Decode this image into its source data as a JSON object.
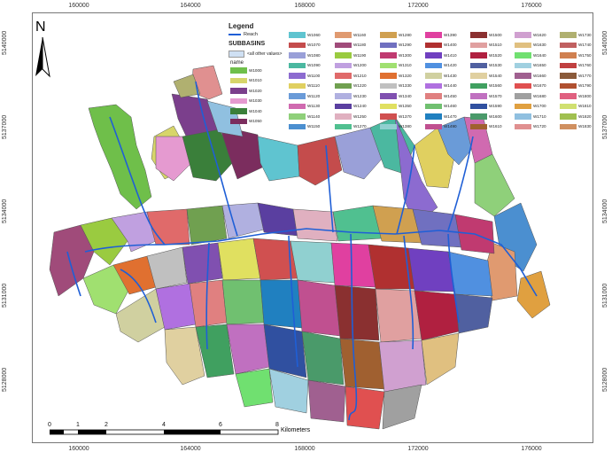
{
  "coords": {
    "x_ticks": [
      "160000",
      "164000",
      "168000",
      "172000",
      "176000"
    ],
    "x_subtitle": "",
    "y_ticks": [
      "5140000",
      "5137000",
      "5134000",
      "5131000",
      "5128000"
    ]
  },
  "legend": {
    "title": "Legend",
    "reach_label": "Reach",
    "subbasins_title": "SUBBASINS",
    "all_other_label": "<all other values>",
    "name_label": "name",
    "entries": [
      {
        "label": "W1000",
        "color": "#6fbf4a"
      },
      {
        "label": "W1010",
        "color": "#d7d56a"
      },
      {
        "label": "W1020",
        "color": "#7b3f8c"
      },
      {
        "label": "W1030",
        "color": "#e59ad0"
      },
      {
        "label": "W1040",
        "color": "#3a7f3a"
      },
      {
        "label": "W1050",
        "color": "#7b2d5e"
      },
      {
        "label": "W1060",
        "color": "#5fc4d0"
      },
      {
        "label": "W1070",
        "color": "#c44c4c"
      },
      {
        "label": "W1080",
        "color": "#9aa0d8"
      },
      {
        "label": "W1090",
        "color": "#4bb8a0"
      },
      {
        "label": "W1100",
        "color": "#8c6bd0"
      },
      {
        "label": "W1110",
        "color": "#e0d060"
      },
      {
        "label": "W1120",
        "color": "#6a9bd8"
      },
      {
        "label": "W1130",
        "color": "#d06ab0"
      },
      {
        "label": "W1140",
        "color": "#8fd07a"
      },
      {
        "label": "W1150",
        "color": "#4b8fd0"
      },
      {
        "label": "W1160",
        "color": "#e09a70"
      },
      {
        "label": "W1180",
        "color": "#a04b7a"
      },
      {
        "label": "W1190",
        "color": "#9acb40"
      },
      {
        "label": "W1200",
        "color": "#c0a0e0"
      },
      {
        "label": "W1210",
        "color": "#e06a6a"
      },
      {
        "label": "W1220",
        "color": "#70a050"
      },
      {
        "label": "W1230",
        "color": "#b0b0e0"
      },
      {
        "label": "W1240",
        "color": "#5a3fa0"
      },
      {
        "label": "W1250",
        "color": "#e0b0c0"
      },
      {
        "label": "W1270",
        "color": "#50c090"
      },
      {
        "label": "W1280",
        "color": "#d0a050"
      },
      {
        "label": "W1290",
        "color": "#7070c0"
      },
      {
        "label": "W1300",
        "color": "#c03a70"
      },
      {
        "label": "W1310",
        "color": "#a0e070"
      },
      {
        "label": "W1320",
        "color": "#e07030"
      },
      {
        "label": "W1330",
        "color": "#c0c0c0"
      },
      {
        "label": "W1340",
        "color": "#8050b0"
      },
      {
        "label": "W1350",
        "color": "#e0e060"
      },
      {
        "label": "W1370",
        "color": "#d05050"
      },
      {
        "label": "W1380",
        "color": "#90d0d0"
      },
      {
        "label": "W1390",
        "color": "#e040a0"
      },
      {
        "label": "W1400",
        "color": "#b03030"
      },
      {
        "label": "W1410",
        "color": "#7040c0"
      },
      {
        "label": "W1420",
        "color": "#5090e0"
      },
      {
        "label": "W1430",
        "color": "#d0d0a0"
      },
      {
        "label": "W1440",
        "color": "#b070e0"
      },
      {
        "label": "W1450",
        "color": "#e08080"
      },
      {
        "label": "W1460",
        "color": "#70c070"
      },
      {
        "label": "W1470",
        "color": "#2080c0"
      },
      {
        "label": "W1490",
        "color": "#c05090"
      },
      {
        "label": "W1500",
        "color": "#8a3030"
      },
      {
        "label": "W1510",
        "color": "#e0a0a0"
      },
      {
        "label": "W1520",
        "color": "#b02040"
      },
      {
        "label": "W1530",
        "color": "#5060a0"
      },
      {
        "label": "W1540",
        "color": "#e0d0a0"
      },
      {
        "label": "W1560",
        "color": "#40a060"
      },
      {
        "label": "W1570",
        "color": "#c070c0"
      },
      {
        "label": "W1590",
        "color": "#3050a0"
      },
      {
        "label": "W1600",
        "color": "#4a9a6a"
      },
      {
        "label": "W1610",
        "color": "#a06030"
      },
      {
        "label": "W1620",
        "color": "#d0a0d0"
      },
      {
        "label": "W1630",
        "color": "#e0c080"
      },
      {
        "label": "W1640",
        "color": "#70e070"
      },
      {
        "label": "W1650",
        "color": "#a0d0e0"
      },
      {
        "label": "W1660",
        "color": "#a06090"
      },
      {
        "label": "W1670",
        "color": "#e05050"
      },
      {
        "label": "W1680",
        "color": "#a0a0a0"
      },
      {
        "label": "W1700",
        "color": "#e0a040"
      },
      {
        "label": "W1710",
        "color": "#90c0e0"
      },
      {
        "label": "W1720",
        "color": "#e09090"
      },
      {
        "label": "W1730",
        "color": "#b0b070"
      },
      {
        "label": "W1740",
        "color": "#c06060"
      },
      {
        "label": "W1750",
        "color": "#d08050"
      },
      {
        "label": "W1760",
        "color": "#c04040"
      },
      {
        "label": "W1770",
        "color": "#8a5a3a"
      },
      {
        "label": "W1790",
        "color": "#b05030"
      },
      {
        "label": "W1800",
        "color": "#e06080"
      },
      {
        "label": "W1810",
        "color": "#d0e070"
      },
      {
        "label": "W1820",
        "color": "#a0c050"
      },
      {
        "label": "W1830",
        "color": "#d09060"
      },
      {
        "label": "W1840",
        "color": "#a08050"
      },
      {
        "label": "W1850",
        "color": "#40a0a0"
      },
      {
        "label": "W1860",
        "color": "#a0e0a0"
      },
      {
        "label": "W1870",
        "color": "#e0e0e0"
      },
      {
        "label": "W1880",
        "color": "#c06060"
      },
      {
        "label": "W1890",
        "color": "#70b0e0"
      },
      {
        "label": "W1900",
        "color": "#e0c0a0"
      },
      {
        "label": "W1910",
        "color": "#5070b0"
      },
      {
        "label": "W1920",
        "color": "#e08040"
      },
      {
        "label": "W1940",
        "color": "#2a4a6a"
      },
      {
        "label": "W1950",
        "color": "#d060d0"
      },
      {
        "label": "W1960",
        "color": "#808080"
      },
      {
        "label": "W1970",
        "color": "#60c040"
      },
      {
        "label": "W1980",
        "color": "#8060e0"
      },
      {
        "label": "W1990",
        "color": "#c07090"
      },
      {
        "label": "W2000",
        "color": "#e07070"
      },
      {
        "label": "W2010",
        "color": "#b0e0b0"
      },
      {
        "label": "W2020",
        "color": "#e0e080"
      },
      {
        "label": "W2030",
        "color": "#3050c0"
      },
      {
        "label": "W2040",
        "color": "#a0a0e0"
      },
      {
        "label": "W2050",
        "color": "#50e0a0"
      },
      {
        "label": "W2060",
        "color": "#e0a060"
      },
      {
        "label": "W2070",
        "color": "#c0c080"
      },
      {
        "label": "W2080",
        "color": "#604040"
      },
      {
        "label": "W2090",
        "color": "#e04040"
      },
      {
        "label": "W2100",
        "color": "#80c0a0"
      },
      {
        "label": "W2110",
        "color": "#a060a0"
      },
      {
        "label": "W2120",
        "color": "#e0b060"
      },
      {
        "label": "W2130",
        "color": "#70a0d0"
      },
      {
        "label": "W2140",
        "color": "#d07070"
      }
    ]
  },
  "north": {
    "label": "N"
  },
  "scale": {
    "ticks": [
      "0",
      "1",
      "2",
      "4",
      "6",
      "8"
    ],
    "units": "Kilometers"
  },
  "map_colors": {
    "reach": "#1f5fd6",
    "outline": "#555555"
  }
}
